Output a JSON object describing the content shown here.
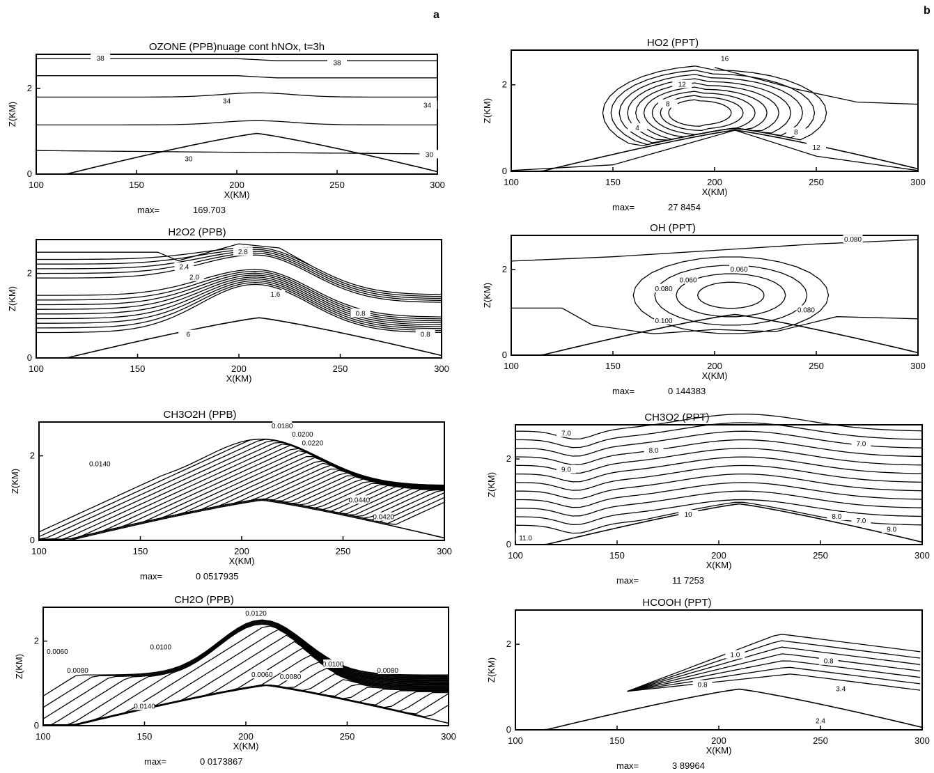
{
  "figure": {
    "panel_letters": [
      "a",
      "b"
    ],
    "colors": {
      "ink": "#000000",
      "background": "#ffffff"
    }
  },
  "chart_data": [
    {
      "type": "contour",
      "column": "a",
      "title": "OZONE (PPB)nuage cont hNOx, t=3h",
      "xlabel": "X(KM)",
      "ylabel": "Z(KM)",
      "xlim": [
        100,
        300
      ],
      "ylim": [
        0,
        2.8
      ],
      "xticks": [
        100,
        150,
        200,
        250,
        300
      ],
      "yticks": [
        0,
        2
      ],
      "max_label": "max=",
      "max_value": "169.703",
      "style": "ozone",
      "contour_labels": [
        {
          "text": "38",
          "x": 132,
          "y": 2.7
        },
        {
          "text": "38",
          "x": 250,
          "y": 2.6
        },
        {
          "text": "34",
          "x": 195,
          "y": 1.7
        },
        {
          "text": "34",
          "x": 295,
          "y": 1.6
        },
        {
          "text": "30",
          "x": 176,
          "y": 0.35
        },
        {
          "text": "30",
          "x": 296,
          "y": 0.45
        }
      ]
    },
    {
      "type": "contour",
      "column": "a",
      "title": "H2O2 (PPB)",
      "xlabel": "X(KM)",
      "ylabel": "Z(KM)",
      "xlim": [
        100,
        300
      ],
      "ylim": [
        0,
        2.8
      ],
      "xticks": [
        100,
        150,
        200,
        250,
        300
      ],
      "yticks": [
        0,
        2
      ],
      "max_label": "",
      "max_value": "",
      "style": "h2o2",
      "contour_labels": [
        {
          "text": "2.8",
          "x": 202,
          "y": 2.5
        },
        {
          "text": "2.4",
          "x": 173,
          "y": 2.15
        },
        {
          "text": "2.0",
          "x": 178,
          "y": 1.9
        },
        {
          "text": "1.6",
          "x": 218,
          "y": 1.5
        },
        {
          "text": "0.8",
          "x": 260,
          "y": 1.05
        },
        {
          "text": "0.8",
          "x": 292,
          "y": 0.55
        },
        {
          "text": "6",
          "x": 175,
          "y": 0.55
        }
      ]
    },
    {
      "type": "contour",
      "column": "a",
      "title": "CH3O2H (PPB)",
      "xlabel": "X(KM)",
      "ylabel": "Z(KM)",
      "xlim": [
        100,
        300
      ],
      "ylim": [
        0,
        2.8
      ],
      "xticks": [
        100,
        150,
        200,
        250,
        300
      ],
      "yticks": [
        0,
        2
      ],
      "max_label": "max=",
      "max_value": "0 0517935",
      "style": "ch3o2h",
      "contour_labels": [
        {
          "text": "0.0180",
          "x": 220,
          "y": 2.7
        },
        {
          "text": "0.0200",
          "x": 230,
          "y": 2.5
        },
        {
          "text": "0.0220",
          "x": 235,
          "y": 2.3
        },
        {
          "text": "0.0140",
          "x": 130,
          "y": 1.8
        },
        {
          "text": "0.0420",
          "x": 270,
          "y": 0.55
        },
        {
          "text": "0.0440",
          "x": 258,
          "y": 0.95
        }
      ]
    },
    {
      "type": "contour",
      "column": "a",
      "title": "CH2O (PPB)",
      "xlabel": "X(KM)",
      "ylabel": "Z(KM)",
      "xlim": [
        100,
        300
      ],
      "ylim": [
        0,
        2.8
      ],
      "xticks": [
        100,
        150,
        200,
        250,
        300
      ],
      "yticks": [
        0,
        2
      ],
      "max_label": "max=",
      "max_value": "0 0173867",
      "style": "ch2o",
      "contour_labels": [
        {
          "text": "0.0120",
          "x": 205,
          "y": 2.65
        },
        {
          "text": "0.0100",
          "x": 158,
          "y": 1.85
        },
        {
          "text": "0.0060",
          "x": 107,
          "y": 1.75
        },
        {
          "text": "0.0080",
          "x": 117,
          "y": 1.3
        },
        {
          "text": "0.0140",
          "x": 150,
          "y": 0.45
        },
        {
          "text": "0.0100",
          "x": 243,
          "y": 1.45
        },
        {
          "text": "0.0080",
          "x": 270,
          "y": 1.3
        },
        {
          "text": "0.0060",
          "x": 208,
          "y": 1.2
        },
        {
          "text": "0.0080",
          "x": 222,
          "y": 1.15
        }
      ]
    },
    {
      "type": "contour",
      "column": "b",
      "title": "HO2 (PPT)",
      "xlabel": "X(KM)",
      "ylabel": "Z(KM)",
      "xlim": [
        100,
        300
      ],
      "ylim": [
        0,
        2.8
      ],
      "xticks": [
        100,
        150,
        200,
        250,
        300
      ],
      "yticks": [
        0,
        2
      ],
      "max_label": "max=",
      "max_value": "27 8454",
      "style": "ho2",
      "contour_labels": [
        {
          "text": "16",
          "x": 205,
          "y": 2.6
        },
        {
          "text": "12",
          "x": 184,
          "y": 2.0
        },
        {
          "text": "8",
          "x": 177,
          "y": 1.55
        },
        {
          "text": "4",
          "x": 162,
          "y": 1.0
        },
        {
          "text": "8",
          "x": 240,
          "y": 0.9
        },
        {
          "text": "12",
          "x": 250,
          "y": 0.55
        }
      ]
    },
    {
      "type": "contour",
      "column": "b",
      "title": "OH (PPT)",
      "xlabel": "X(KM)",
      "ylabel": "Z(KM)",
      "xlim": [
        100,
        300
      ],
      "ylim": [
        0,
        2.8
      ],
      "xticks": [
        100,
        150,
        200,
        250,
        300
      ],
      "yticks": [
        0,
        2
      ],
      "max_label": "max=",
      "max_value": "0 144383",
      "style": "oh",
      "contour_labels": [
        {
          "text": "0.080",
          "x": 268,
          "y": 2.7
        },
        {
          "text": "0.060",
          "x": 212,
          "y": 2.0
        },
        {
          "text": "0.060",
          "x": 187,
          "y": 1.75
        },
        {
          "text": "0.080",
          "x": 175,
          "y": 1.55
        },
        {
          "text": "0.100",
          "x": 175,
          "y": 0.8
        },
        {
          "text": "0.080",
          "x": 245,
          "y": 1.05
        }
      ]
    },
    {
      "type": "contour",
      "column": "b",
      "title": "CH3O2 (PPT)",
      "xlabel": "X(KM)",
      "ylabel": "Z(KM)",
      "xlim": [
        100,
        300
      ],
      "ylim": [
        0,
        2.8
      ],
      "xticks": [
        100,
        150,
        200,
        250,
        300
      ],
      "yticks": [
        0,
        2
      ],
      "max_label": "max=",
      "max_value": "11 7253",
      "style": "ch3o2",
      "contour_labels": [
        {
          "text": "7.0",
          "x": 125,
          "y": 2.6
        },
        {
          "text": "7.0",
          "x": 270,
          "y": 2.35
        },
        {
          "text": "8.0",
          "x": 168,
          "y": 2.2
        },
        {
          "text": "9.0",
          "x": 125,
          "y": 1.75
        },
        {
          "text": "10",
          "x": 185,
          "y": 0.7
        },
        {
          "text": "11.0",
          "x": 105,
          "y": 0.15
        },
        {
          "text": "9.0",
          "x": 285,
          "y": 0.35
        },
        {
          "text": "7.0",
          "x": 270,
          "y": 0.55
        },
        {
          "text": "8.0",
          "x": 258,
          "y": 0.65
        }
      ]
    },
    {
      "type": "contour",
      "column": "b",
      "title": "HCOOH (PPT)",
      "xlabel": "X(KM)",
      "ylabel": "Z(KM)",
      "xlim": [
        100,
        300
      ],
      "ylim": [
        0,
        2.8
      ],
      "xticks": [
        100,
        150,
        200,
        250,
        300
      ],
      "yticks": [
        0,
        2
      ],
      "max_label": "max=",
      "max_value": "3 89964",
      "style": "hcooh",
      "contour_labels": [
        {
          "text": "1.0",
          "x": 208,
          "y": 1.75
        },
        {
          "text": "0.8",
          "x": 254,
          "y": 1.6
        },
        {
          "text": "0.8",
          "x": 192,
          "y": 1.05
        },
        {
          "text": "3.4",
          "x": 260,
          "y": 0.95
        },
        {
          "text": "2.4",
          "x": 250,
          "y": 0.2
        }
      ]
    }
  ]
}
